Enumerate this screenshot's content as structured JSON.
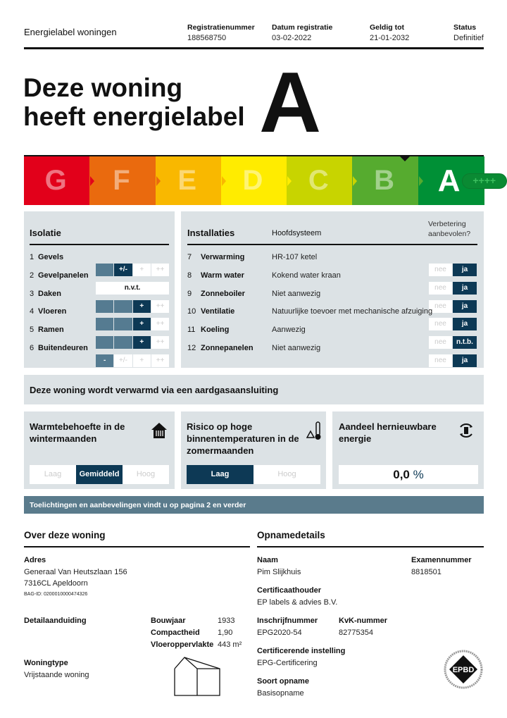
{
  "header": {
    "title": "Energielabel woningen",
    "columns": [
      {
        "label": "Registratienummer",
        "value": "188568750"
      },
      {
        "label": "Datum registratie",
        "value": "03-02-2022"
      },
      {
        "label": "Geldig tot",
        "value": "21-01-2032"
      },
      {
        "label": "Status",
        "value": "Definitief"
      }
    ]
  },
  "hero": {
    "line1": "Deze woning",
    "line2": "heeft energielabel",
    "label": "A"
  },
  "scale": {
    "classes": [
      {
        "letter": "G",
        "color": "#e2001a"
      },
      {
        "letter": "F",
        "color": "#ea6a0e"
      },
      {
        "letter": "E",
        "color": "#f9b800"
      },
      {
        "letter": "D",
        "color": "#ffec00"
      },
      {
        "letter": "C",
        "color": "#c8d400"
      },
      {
        "letter": "B",
        "color": "#56ab2f"
      },
      {
        "letter": "A",
        "color": "#009036"
      }
    ],
    "active": "A",
    "plus": "++++"
  },
  "isolatie": {
    "title": "Isolatie",
    "scale_labels": [
      "-",
      "+/-",
      "+",
      "++"
    ],
    "items": [
      {
        "num": "1",
        "name": "Gevels",
        "level": 2
      },
      {
        "num": "2",
        "name": "Gevelpanelen",
        "value": "n.v.t."
      },
      {
        "num": "3",
        "name": "Daken",
        "level": 3
      },
      {
        "num": "4",
        "name": "Vloeren",
        "level": 3
      },
      {
        "num": "5",
        "name": "Ramen",
        "level": 3
      },
      {
        "num": "6",
        "name": "Buitendeuren",
        "level": 1
      }
    ]
  },
  "installaties": {
    "title": "Installaties",
    "col_system": "Hoofdsysteem",
    "col_improve": "Verbetering aanbevolen?",
    "no_label": "nee",
    "items": [
      {
        "num": "7",
        "name": "Verwarming",
        "system": "HR-107 ketel",
        "improve": "ja"
      },
      {
        "num": "8",
        "name": "Warm water",
        "system": "Kokend water kraan",
        "improve": "ja"
      },
      {
        "num": "9",
        "name": "Zonneboiler",
        "system": "Niet aanwezig",
        "improve": "ja"
      },
      {
        "num": "10",
        "name": "Ventilatie",
        "system": "Natuurlijke toevoer met mechanische afzuiging",
        "improve": "ja"
      },
      {
        "num": "11",
        "name": "Koeling",
        "system": "Aanwezig",
        "improve": "n.t.b."
      },
      {
        "num": "12",
        "name": "Zonnepanelen",
        "system": "Niet aanwezig",
        "improve": "ja"
      }
    ]
  },
  "heating_banner": "Deze woning wordt verwarmd via een aardgasaansluiting",
  "cards": {
    "warmte": {
      "title": "Warmtebehoefte in de wintermaanden",
      "options": [
        "Laag",
        "Gemiddeld",
        "Hoog"
      ],
      "selected": "Gemiddeld"
    },
    "risico": {
      "title": "Risico op hoge binnentemperaturen in de zomermaanden",
      "options": [
        "Laag",
        "Hoog"
      ],
      "selected": "Laag"
    },
    "hernieuwbaar": {
      "title": "Aandeel hernieuwbare energie",
      "value": "0,0",
      "unit": "%"
    }
  },
  "info_bar": "Toelichtingen en aanbevelingen vindt u op pagina 2 en verder",
  "woning": {
    "title": "Over deze woning",
    "adres_label": "Adres",
    "adres1": "Generaal Van Heutszlaan 156",
    "adres2": "7316CL Apeldoorn",
    "bag": "BAG-ID: 0200010000474326",
    "detail_label": "Detailaanduiding",
    "bouwjaar_label": "Bouwjaar",
    "bouwjaar": "1933",
    "compact_label": "Compactheid",
    "compact": "1,90",
    "vloer_label": "Vloeroppervlakte",
    "vloer": "443 m²",
    "type_label": "Woningtype",
    "type": "Vrijstaande woning"
  },
  "opname": {
    "title": "Opnamedetails",
    "naam_label": "Naam",
    "naam": "Pim Slijkhuis",
    "exam_label": "Examennummer",
    "exam": "8818501",
    "cert_label": "Certificaathouder",
    "cert": "EP labels & advies B.V.",
    "inschr_label": "Inschrijfnummer",
    "inschr": "EPG2020-54",
    "kvk_label": "KvK-nummer",
    "kvk": "82775354",
    "inst_label": "Certificerende instelling",
    "inst": "EPG-Certificering",
    "soort_label": "Soort opname",
    "soort": "Basisopname",
    "logo_text": "EPBD"
  }
}
